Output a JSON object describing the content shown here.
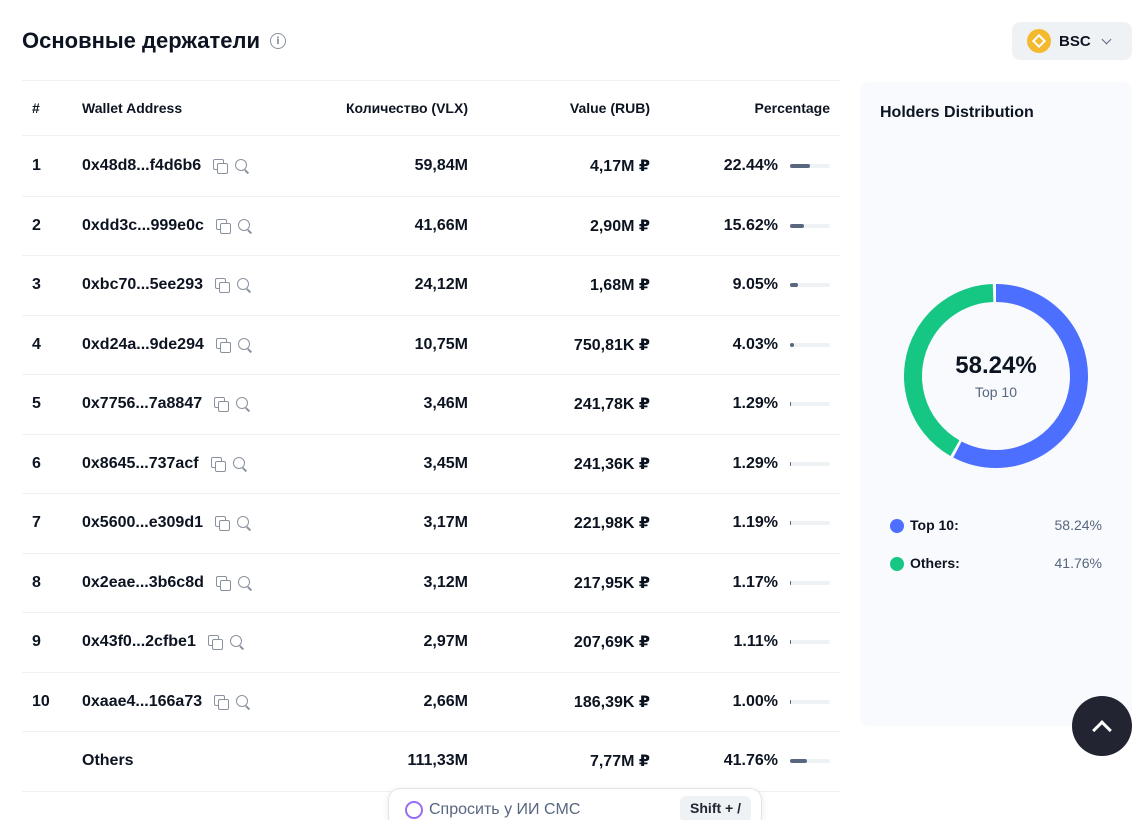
{
  "header": {
    "title": "Основные держатели",
    "info_icon": "info-icon"
  },
  "chain_select": {
    "value": "BSC",
    "icon": "bnb-logo"
  },
  "table": {
    "columns": [
      "#",
      "Wallet Address",
      "Количество (VLX)",
      "Value (RUB)",
      "Percentage"
    ],
    "rows": [
      {
        "rank": "1",
        "address": "0x48d8...f4d6b6",
        "qty": "59,84M",
        "value": "4,17M ₽",
        "pct": "22.44%",
        "share": 0.2244
      },
      {
        "rank": "2",
        "address": "0xdd3c...999e0c",
        "qty": "41,66M",
        "value": "2,90M ₽",
        "pct": "15.62%",
        "share": 0.1562
      },
      {
        "rank": "3",
        "address": "0xbc70...5ee293",
        "qty": "24,12M",
        "value": "1,68M ₽",
        "pct": "9.05%",
        "share": 0.0905
      },
      {
        "rank": "4",
        "address": "0xd24a...9de294",
        "qty": "10,75M",
        "value": "750,81K ₽",
        "pct": "4.03%",
        "share": 0.0403
      },
      {
        "rank": "5",
        "address": "0x7756...7a8847",
        "qty": "3,46M",
        "value": "241,78K ₽",
        "pct": "1.29%",
        "share": 0.0129
      },
      {
        "rank": "6",
        "address": "0x8645...737acf",
        "qty": "3,45M",
        "value": "241,36K ₽",
        "pct": "1.29%",
        "share": 0.0129
      },
      {
        "rank": "7",
        "address": "0x5600...e309d1",
        "qty": "3,17M",
        "value": "221,98K ₽",
        "pct": "1.19%",
        "share": 0.0119
      },
      {
        "rank": "8",
        "address": "0x2eae...3b6c8d",
        "qty": "3,12M",
        "value": "217,95K ₽",
        "pct": "1.17%",
        "share": 0.0117
      },
      {
        "rank": "9",
        "address": "0x43f0...2cfbe1",
        "qty": "2,97M",
        "value": "207,69K ₽",
        "pct": "1.11%",
        "share": 0.0111
      },
      {
        "rank": "10",
        "address": "0xaae4...166a73",
        "qty": "2,66M",
        "value": "186,39K ₽",
        "pct": "1.00%",
        "share": 0.01
      }
    ],
    "others": {
      "label": "Others",
      "qty": "111,33M",
      "value": "7,77M ₽",
      "pct": "41.76%",
      "share": 0.4176
    }
  },
  "distribution": {
    "title": "Holders Distribution",
    "center_value": "58.24%",
    "center_label": "Top 10",
    "segments": [
      {
        "name": "Top 10:",
        "value": "58.24%",
        "share": 0.5824,
        "color": "#4c6fff"
      },
      {
        "name": "Others:",
        "value": "41.76%",
        "share": 0.4176,
        "color": "#16c784"
      }
    ]
  },
  "ai_bar": {
    "placeholder": "Спросить у ИИ CMC",
    "shortcut": "Shift + /"
  }
}
